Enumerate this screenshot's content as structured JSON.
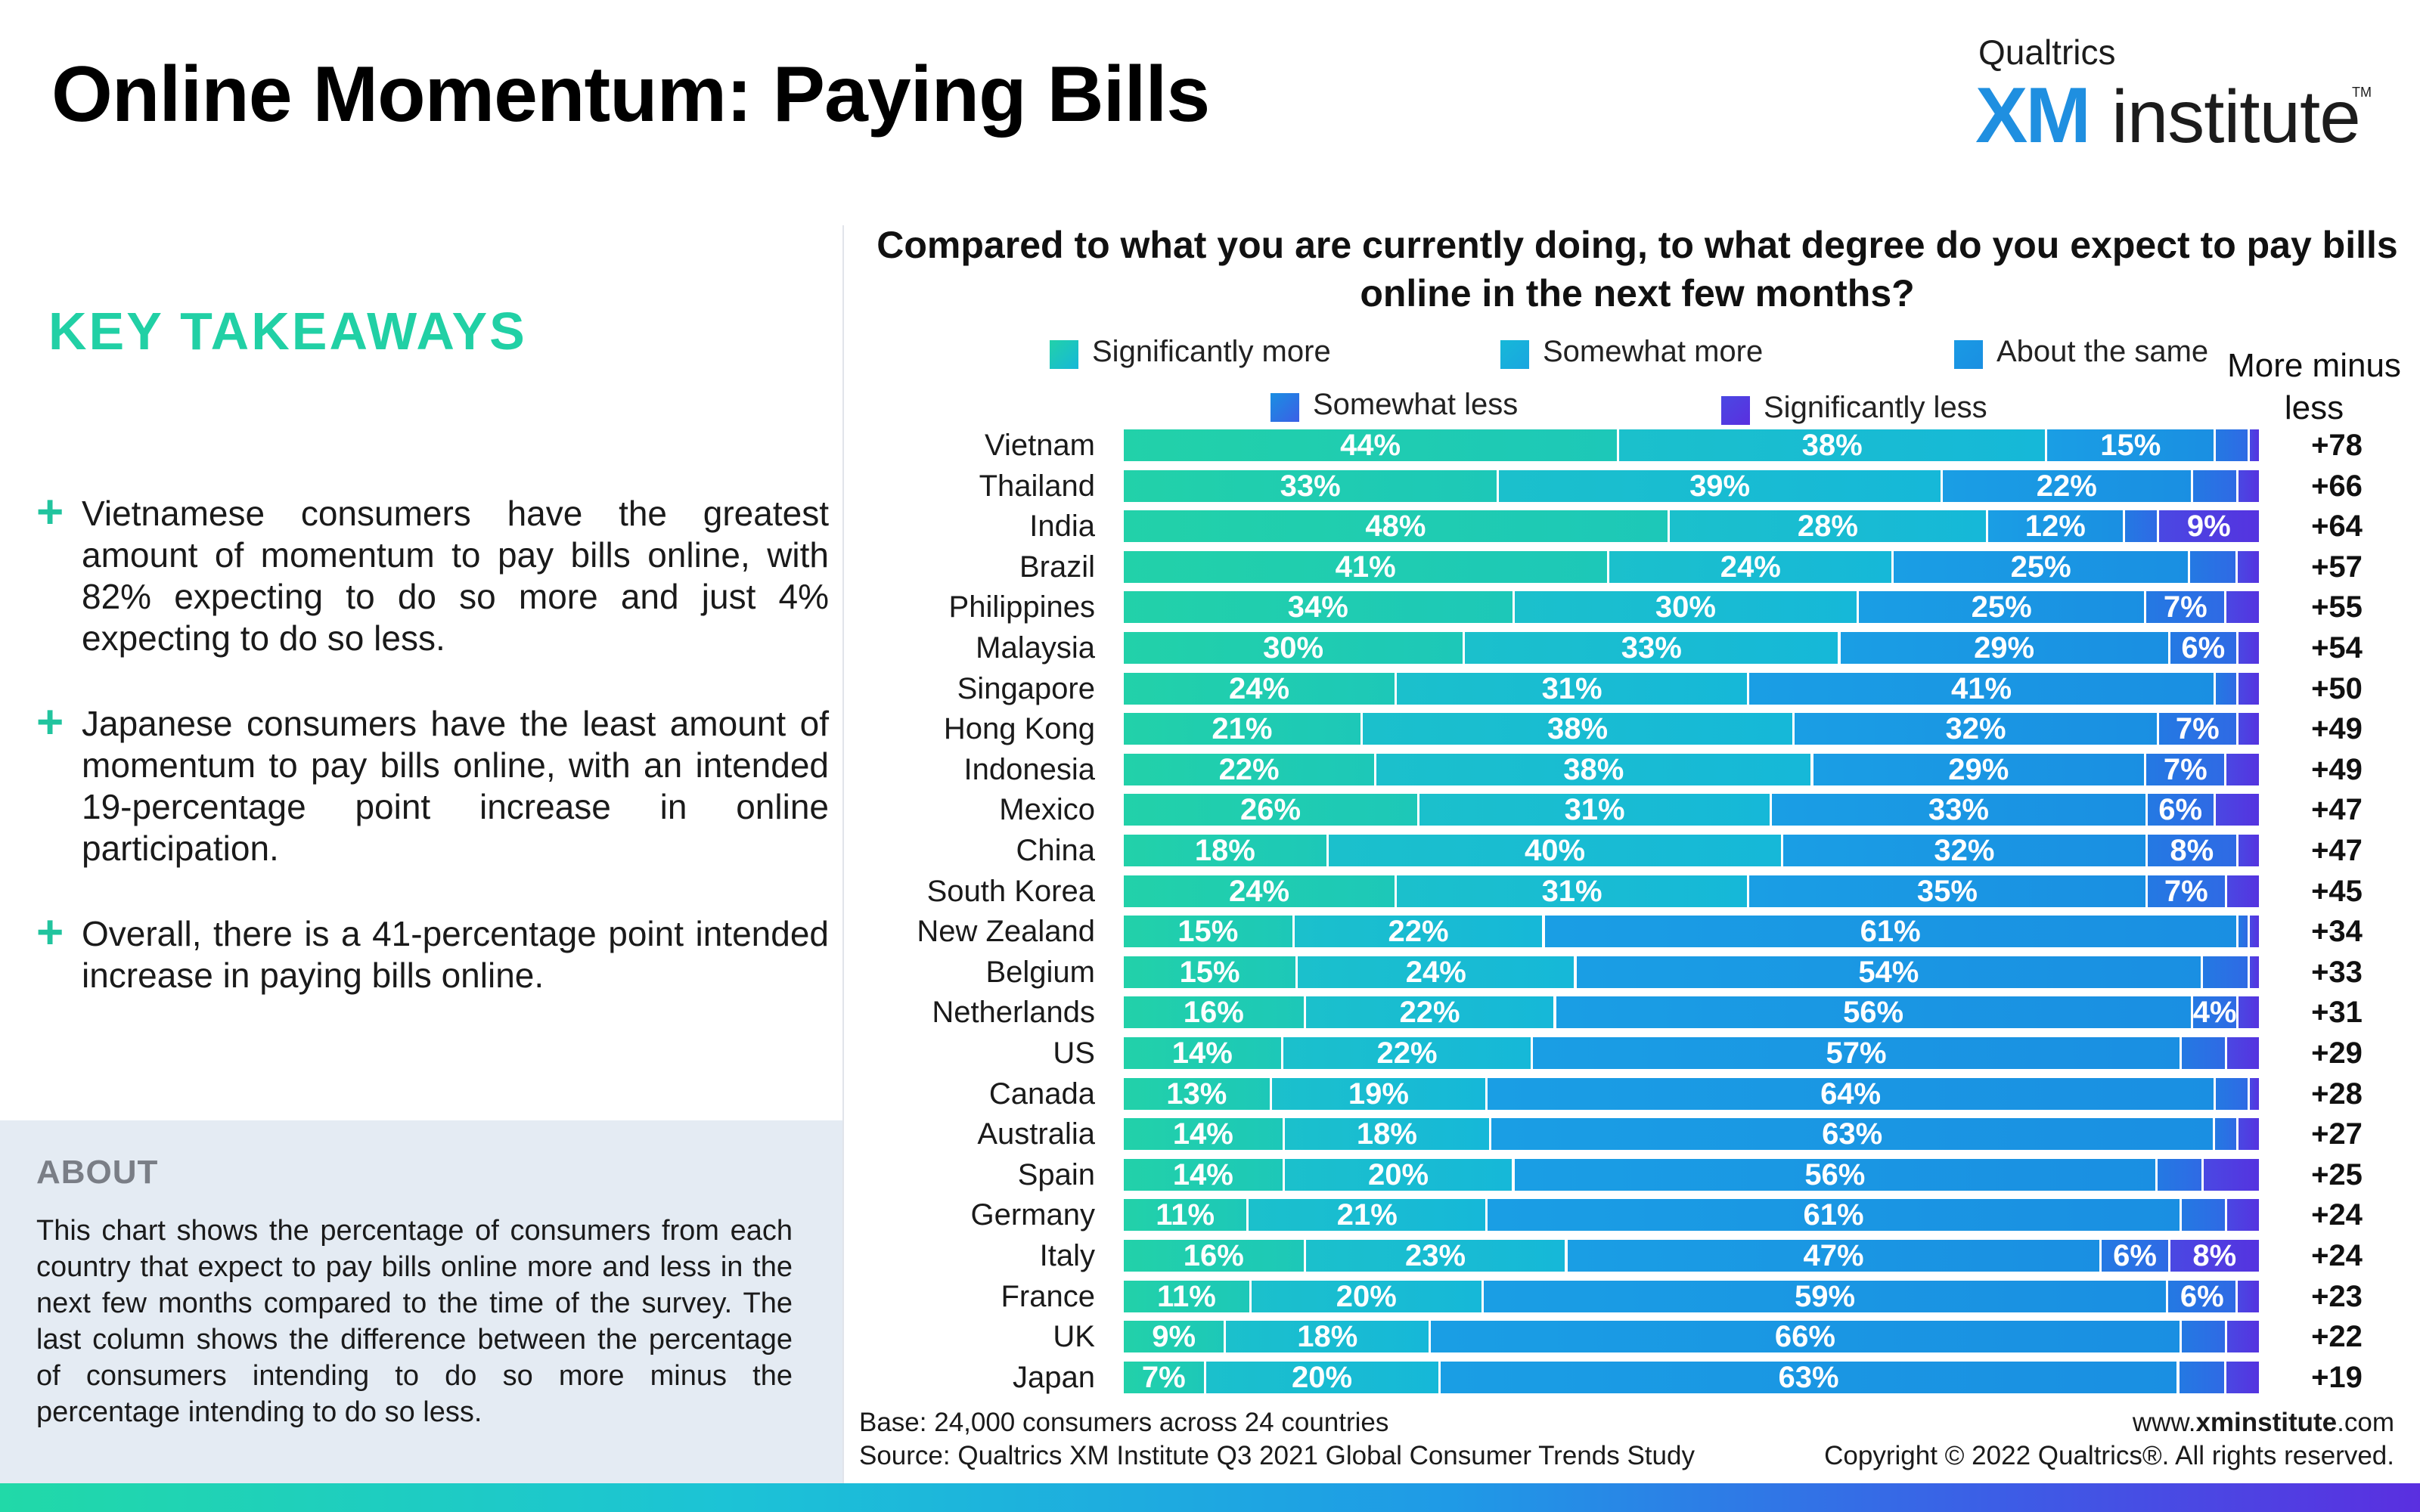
{
  "header": {
    "title": "Online Momentum: Paying Bills",
    "brand_top": "Qualtrics",
    "brand_xm": "XM",
    "brand_institute": "institute",
    "brand_tm": "TM"
  },
  "takeaways": {
    "heading": "KEY TAKEAWAYS",
    "items": [
      "Vietnamese consumers have the greatest amount of momentum to pay bills online, with 82% expecting to do so more and just 4% expecting to do so less.",
      "Japanese consumers have the least amount of momentum to pay bills online, with an intended 19-percentage point increase in online participation.",
      "Overall, there is a 41-percentage point intended increase in paying bills online."
    ]
  },
  "about": {
    "heading": "ABOUT",
    "text": "This chart shows the percentage of consumers from each country that expect to pay bills online more and less in the next few months compared to the time of the survey. The last column shows the difference between the percentage of consumers intending to do so more minus the percentage intending to do so less."
  },
  "colors": {
    "significantly_more": "#22d1a9",
    "somewhat_more": "#16b8d8",
    "about_same": "#1a8fe2",
    "somewhat_less": "#2f6ae4",
    "significantly_less": "#5533e0"
  },
  "chart_data": {
    "type": "bar",
    "orientation": "horizontal",
    "stacked": true,
    "title": "Compared to what you are currently doing, to what degree do you expect to pay bills online in the next few months?",
    "net_column_label": "More minus less",
    "legend_placement": "top",
    "categories": [
      "Vietnam",
      "Thailand",
      "India",
      "Brazil",
      "Philippines",
      "Malaysia",
      "Singapore",
      "Hong Kong",
      "Indonesia",
      "Mexico",
      "China",
      "South Korea",
      "New Zealand",
      "Belgium",
      "Netherlands",
      "US",
      "Canada",
      "Australia",
      "Spain",
      "Germany",
      "Italy",
      "France",
      "UK",
      "Japan"
    ],
    "series": [
      {
        "name": "Significantly more",
        "values": [
          44,
          33,
          48,
          41,
          34,
          30,
          24,
          21,
          22,
          26,
          18,
          24,
          15,
          15,
          16,
          14,
          13,
          14,
          14,
          11,
          16,
          11,
          9,
          7
        ]
      },
      {
        "name": "Somewhat more",
        "values": [
          38,
          39,
          28,
          24,
          30,
          33,
          31,
          38,
          38,
          31,
          40,
          31,
          22,
          24,
          22,
          22,
          19,
          18,
          20,
          21,
          23,
          20,
          18,
          20
        ]
      },
      {
        "name": "About the same",
        "values": [
          15,
          22,
          12,
          25,
          25,
          29,
          41,
          32,
          29,
          33,
          32,
          35,
          61,
          54,
          56,
          57,
          64,
          63,
          56,
          61,
          47,
          59,
          66,
          63
        ]
      },
      {
        "name": "Somewhat less",
        "values": [
          3,
          4,
          3,
          4,
          7,
          6,
          2,
          7,
          7,
          6,
          8,
          7,
          1,
          4,
          4,
          4,
          3,
          2,
          4,
          4,
          6,
          6,
          4,
          4
        ]
      },
      {
        "name": "Significantly less",
        "values": [
          1,
          2,
          9,
          2,
          3,
          2,
          2,
          2,
          3,
          4,
          2,
          3,
          1,
          1,
          2,
          3,
          1,
          2,
          5,
          3,
          8,
          2,
          3,
          3
        ]
      }
    ],
    "value_labels": [
      [
        "44%",
        "38%",
        "15%",
        "",
        ""
      ],
      [
        "33%",
        "39%",
        "22%",
        "",
        ""
      ],
      [
        "48%",
        "28%",
        "12%",
        "",
        "9%"
      ],
      [
        "41%",
        "24%",
        "25%",
        "",
        ""
      ],
      [
        "34%",
        "30%",
        "25%",
        "7%",
        ""
      ],
      [
        "30%",
        "33%",
        "29%",
        "6%",
        ""
      ],
      [
        "24%",
        "31%",
        "41%",
        "",
        ""
      ],
      [
        "21%",
        "38%",
        "32%",
        "7%",
        ""
      ],
      [
        "22%",
        "38%",
        "29%",
        "7%",
        ""
      ],
      [
        "26%",
        "31%",
        "33%",
        "6%",
        ""
      ],
      [
        "18%",
        "40%",
        "32%",
        "8%",
        ""
      ],
      [
        "24%",
        "31%",
        "35%",
        "7%",
        ""
      ],
      [
        "15%",
        "22%",
        "61%",
        "",
        ""
      ],
      [
        "15%",
        "24%",
        "54%",
        "",
        ""
      ],
      [
        "16%",
        "22%",
        "56%",
        "4%",
        ""
      ],
      [
        "14%",
        "22%",
        "57%",
        "",
        ""
      ],
      [
        "13%",
        "19%",
        "64%",
        "",
        ""
      ],
      [
        "14%",
        "18%",
        "63%",
        "",
        ""
      ],
      [
        "14%",
        "20%",
        "56%",
        "",
        ""
      ],
      [
        "11%",
        "21%",
        "61%",
        "",
        ""
      ],
      [
        "16%",
        "23%",
        "47%",
        "6%",
        "8%"
      ],
      [
        "11%",
        "20%",
        "59%",
        "6%",
        ""
      ],
      [
        "9%",
        "18%",
        "66%",
        "",
        ""
      ],
      [
        "7%",
        "20%",
        "63%",
        "",
        ""
      ]
    ],
    "net": [
      "+78",
      "+66",
      "+64",
      "+57",
      "+55",
      "+54",
      "+50",
      "+49",
      "+49",
      "+47",
      "+47",
      "+45",
      "+34",
      "+33",
      "+31",
      "+29",
      "+28",
      "+27",
      "+25",
      "+24",
      "+24",
      "+23",
      "+22",
      "+19"
    ]
  },
  "footer": {
    "base": "Base: 24,000 consumers across 24 countries",
    "source": "Source: Qualtrics XM Institute Q3 2021 Global Consumer Trends Study",
    "url_prefix": "www.",
    "url_bold": "xminstitute",
    "url_suffix": ".com",
    "copyright": "Copyright © 2022 Qualtrics®. All rights reserved."
  }
}
